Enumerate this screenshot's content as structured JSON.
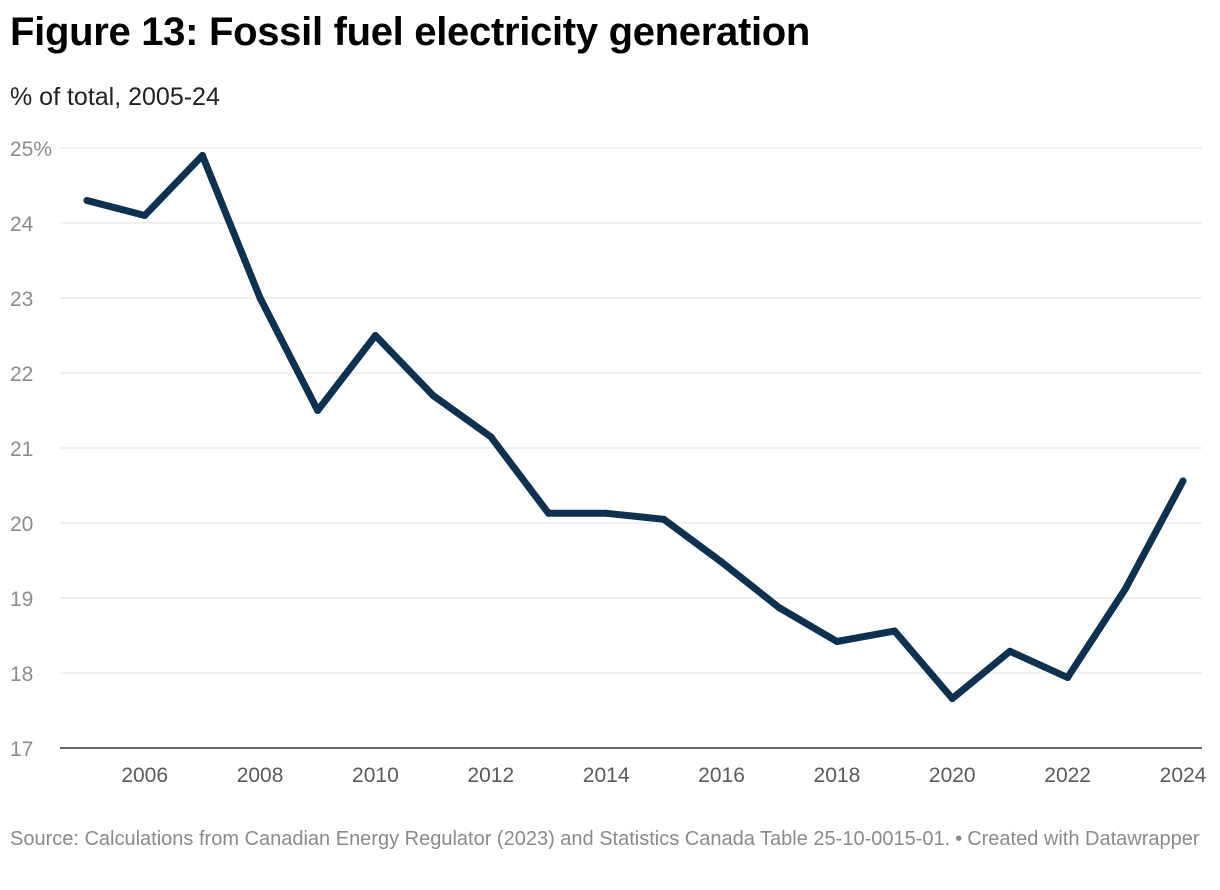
{
  "title": "Figure 13: Fossil fuel electricity generation",
  "subtitle": "% of total, 2005-24",
  "footer": {
    "source": "Source: Calculations from Canadian Energy Regulator (2023) and Statistics Canada Table 25-10-0015-01.",
    "separator": "•",
    "credit": "Created with Datawrapper"
  },
  "colors": {
    "line": "#0e3150",
    "grid": "#e2e2e2",
    "tick_text": "#8c8c8c",
    "x_tick_text": "#5a5a5a"
  },
  "chart_data": {
    "type": "line",
    "title": "Figure 13: Fossil fuel electricity generation",
    "subtitle": "% of total, 2005-24",
    "xlabel": "",
    "ylabel": "",
    "xlim": [
      2005,
      2024
    ],
    "ylim": [
      17,
      25
    ],
    "grid": true,
    "y_ticks": [
      {
        "value": 25,
        "label": "25%"
      },
      {
        "value": 24,
        "label": "24"
      },
      {
        "value": 23,
        "label": "23"
      },
      {
        "value": 22,
        "label": "22"
      },
      {
        "value": 21,
        "label": "21"
      },
      {
        "value": 20,
        "label": "20"
      },
      {
        "value": 19,
        "label": "19"
      },
      {
        "value": 18,
        "label": "18"
      },
      {
        "value": 17,
        "label": "17"
      }
    ],
    "x_ticks": [
      {
        "value": 2006,
        "label": "2006"
      },
      {
        "value": 2008,
        "label": "2008"
      },
      {
        "value": 2010,
        "label": "2010"
      },
      {
        "value": 2012,
        "label": "2012"
      },
      {
        "value": 2014,
        "label": "2014"
      },
      {
        "value": 2016,
        "label": "2016"
      },
      {
        "value": 2018,
        "label": "2018"
      },
      {
        "value": 2020,
        "label": "2020"
      },
      {
        "value": 2022,
        "label": "2022"
      },
      {
        "value": 2024,
        "label": "2024"
      }
    ],
    "series": [
      {
        "x": [
          2005,
          2006,
          2007,
          2008,
          2009,
          2010,
          2011,
          2012,
          2013,
          2014,
          2015,
          2016,
          2017,
          2018,
          2019,
          2020,
          2021,
          2022,
          2023,
          2024
        ],
        "values": [
          24.3,
          24.1,
          24.9,
          23.0,
          21.5,
          22.5,
          21.7,
          21.15,
          20.13,
          20.13,
          20.05,
          19.48,
          18.87,
          18.42,
          18.56,
          17.66,
          18.29,
          17.94,
          19.12,
          20.56
        ]
      }
    ]
  }
}
